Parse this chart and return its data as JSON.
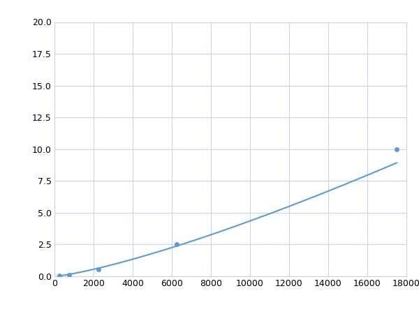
{
  "x": [
    250,
    750,
    2250,
    6250,
    17500
  ],
  "y": [
    0.05,
    0.12,
    0.55,
    2.5,
    10.0
  ],
  "line_color": "#5B9BD5",
  "marker_color": "#5B9BD5",
  "marker_size": 5,
  "line_width": 1.5,
  "xlim": [
    0,
    18000
  ],
  "ylim": [
    0,
    20
  ],
  "xticks": [
    0,
    2000,
    4000,
    6000,
    8000,
    10000,
    12000,
    14000,
    16000,
    18000
  ],
  "yticks": [
    0.0,
    2.5,
    5.0,
    7.5,
    10.0,
    12.5,
    15.0,
    17.5,
    20.0
  ],
  "grid": true,
  "background_color": "#ffffff",
  "figure_bg_color": "#ffffff",
  "grid_color": "#C8D4E3",
  "grid_linewidth": 0.8
}
